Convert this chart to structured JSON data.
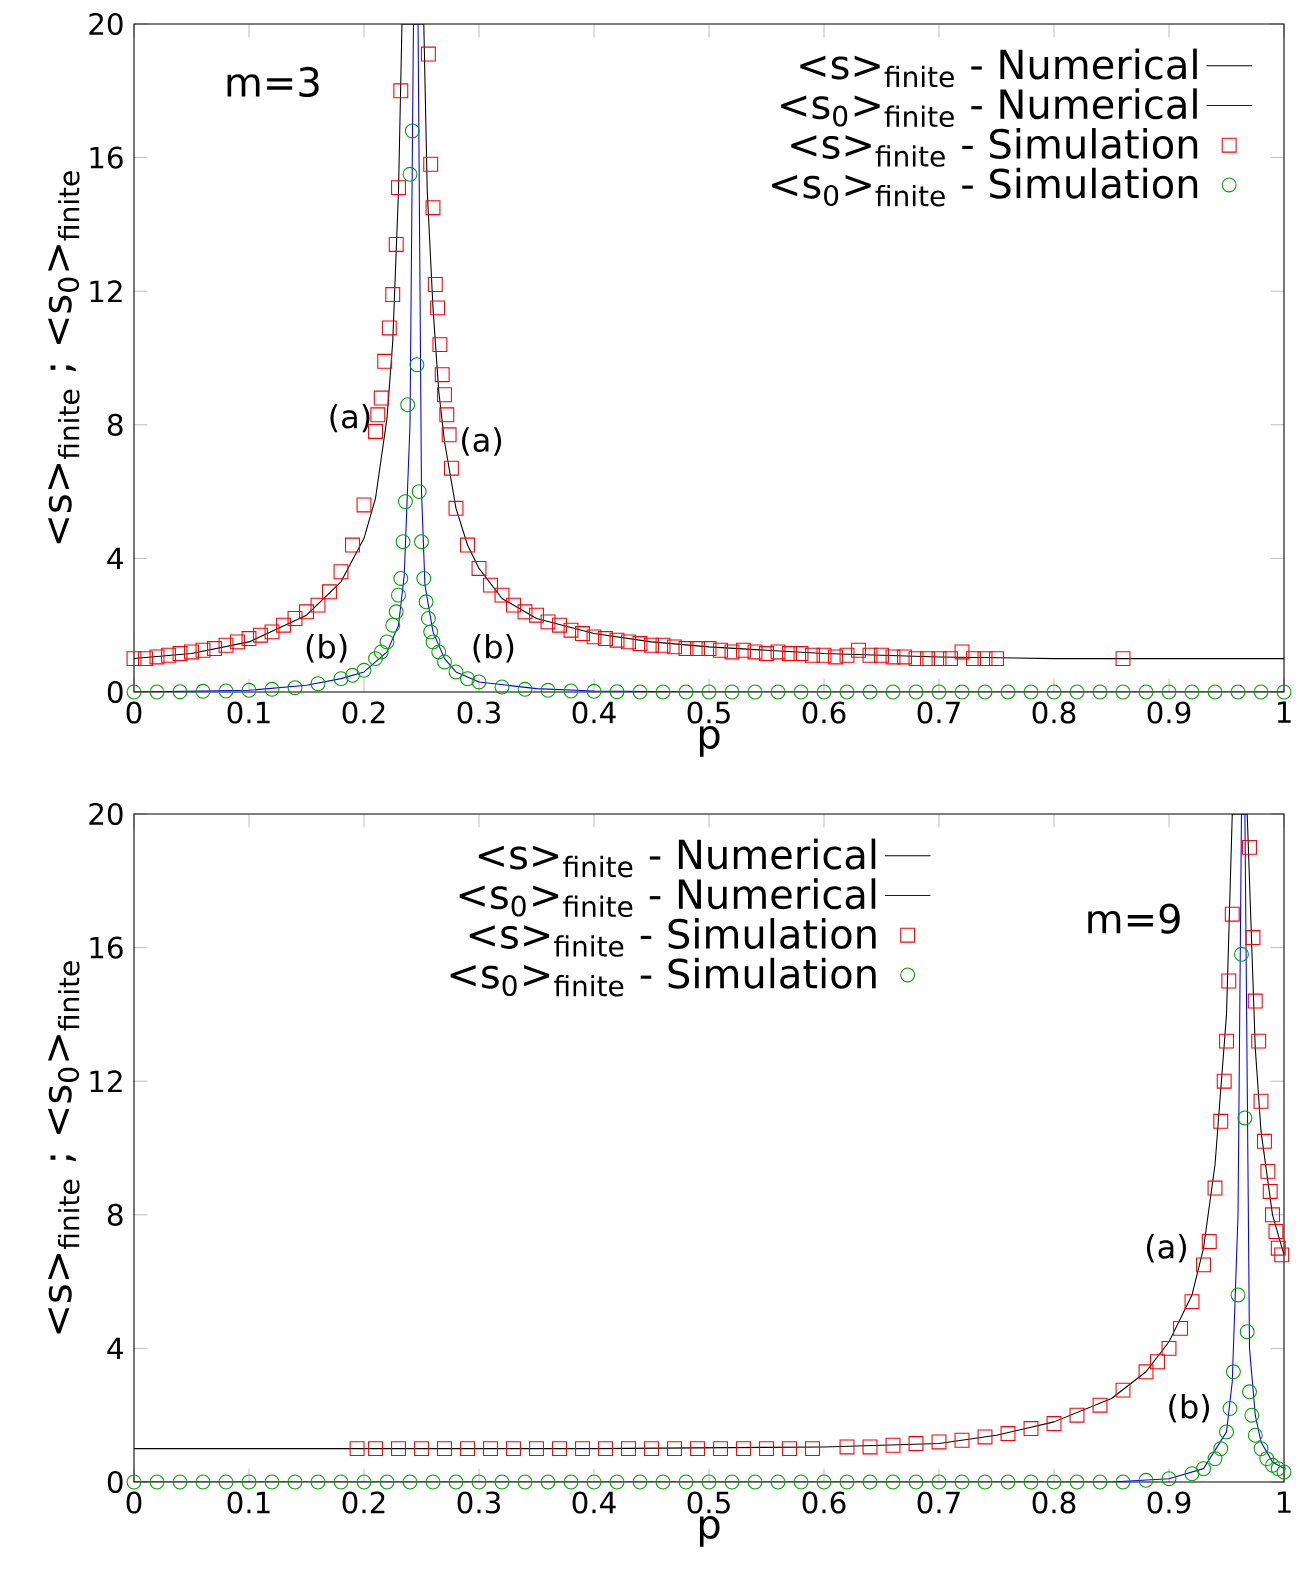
{
  "chart_data": [
    {
      "type": "line",
      "xlabel": "p",
      "ylabel": "<s>$_{finite}$ ; <s$_{0}$>$_{finite}$",
      "xlim": [
        0,
        1
      ],
      "ylim": [
        0,
        20
      ],
      "xticks": [
        0,
        0.1,
        0.2,
        0.3,
        0.4,
        0.5,
        0.6,
        0.7,
        0.8,
        0.9,
        1
      ],
      "yticks": [
        0,
        4,
        8,
        12,
        16,
        20
      ],
      "legend": "top right",
      "annotations": [
        "m=3",
        {
          "text": "(a)",
          "x": 0.22,
          "y": 8.2
        },
        {
          "text": "(a)",
          "x": 0.27,
          "y": 7.5
        },
        {
          "text": "(b)",
          "x": 0.2,
          "y": 0.6
        },
        {
          "text": "(b)",
          "x": 0.28,
          "y": 0.6
        }
      ],
      "series": [
        {
          "name": "<s>$_{finite}$ - Numerical",
          "color": "#000000",
          "x": [
            0,
            0.05,
            0.1,
            0.15,
            0.18,
            0.2,
            0.21,
            0.22,
            0.225,
            0.23,
            0.233,
            0.252,
            0.255,
            0.26,
            0.265,
            0.27,
            0.28,
            0.29,
            0.3,
            0.32,
            0.35,
            0.4,
            0.45,
            0.5,
            0.6,
            0.7,
            0.8,
            1
          ],
          "values": [
            1.0,
            1.15,
            1.5,
            2.3,
            3.3,
            4.6,
            5.8,
            8.2,
            10.5,
            15,
            20,
            20,
            15,
            11.5,
            9,
            7.5,
            5.5,
            4.4,
            3.7,
            2.8,
            2.2,
            1.75,
            1.5,
            1.35,
            1.15,
            1.05,
            1.0,
            1.0
          ]
        },
        {
          "name": "<s$_{0}$>$_{finite}$ - Numerical",
          "color": "#0000ff",
          "x": [
            0,
            0.1,
            0.15,
            0.18,
            0.2,
            0.22,
            0.23,
            0.235,
            0.24,
            0.243,
            0.247,
            0.25,
            0.253,
            0.26,
            0.27,
            0.28,
            0.3,
            0.35,
            0.4,
            0.5,
            1
          ],
          "values": [
            0,
            0.05,
            0.2,
            0.4,
            0.6,
            1.2,
            2.0,
            3.5,
            8,
            20,
            20,
            6,
            3.2,
            1.8,
            1.0,
            0.6,
            0.3,
            0.1,
            0.03,
            0,
            0
          ]
        },
        {
          "name": "<s>$_{finite}$ - Simulation",
          "type": "scatter",
          "marker": "square",
          "color": "#ff0000",
          "x": [
            0,
            0.01,
            0.02,
            0.03,
            0.04,
            0.05,
            0.06,
            0.07,
            0.08,
            0.09,
            0.1,
            0.11,
            0.12,
            0.13,
            0.14,
            0.15,
            0.16,
            0.17,
            0.18,
            0.19,
            0.2,
            0.21,
            0.212,
            0.215,
            0.218,
            0.222,
            0.225,
            0.228,
            0.23,
            0.232,
            0.256,
            0.258,
            0.26,
            0.262,
            0.264,
            0.266,
            0.268,
            0.27,
            0.272,
            0.274,
            0.276,
            0.28,
            0.29,
            0.3,
            0.31,
            0.32,
            0.33,
            0.34,
            0.35,
            0.36,
            0.37,
            0.38,
            0.39,
            0.4,
            0.41,
            0.42,
            0.43,
            0.44,
            0.45,
            0.46,
            0.47,
            0.48,
            0.49,
            0.5,
            0.51,
            0.52,
            0.53,
            0.54,
            0.55,
            0.56,
            0.57,
            0.58,
            0.59,
            0.6,
            0.61,
            0.62,
            0.63,
            0.64,
            0.65,
            0.66,
            0.67,
            0.68,
            0.69,
            0.7,
            0.71,
            0.72,
            0.73,
            0.74,
            0.75,
            0.86
          ],
          "values": [
            1.0,
            1.0,
            1.05,
            1.1,
            1.15,
            1.2,
            1.25,
            1.3,
            1.4,
            1.5,
            1.6,
            1.7,
            1.8,
            2.0,
            2.2,
            2.4,
            2.6,
            3.0,
            3.6,
            4.4,
            5.6,
            7.8,
            8.3,
            8.8,
            9.9,
            10.9,
            11.9,
            13.4,
            15.1,
            18.0,
            19.1,
            15.8,
            14.5,
            12.2,
            11.5,
            10.4,
            9.5,
            8.9,
            8.3,
            7.7,
            6.7,
            5.5,
            4.4,
            3.7,
            3.2,
            2.9,
            2.6,
            2.4,
            2.3,
            2.1,
            2.0,
            1.85,
            1.75,
            1.65,
            1.6,
            1.55,
            1.5,
            1.45,
            1.4,
            1.4,
            1.35,
            1.3,
            1.3,
            1.3,
            1.25,
            1.2,
            1.25,
            1.2,
            1.15,
            1.2,
            1.15,
            1.15,
            1.1,
            1.1,
            1.05,
            1.1,
            1.25,
            1.1,
            1.1,
            1.05,
            1.05,
            1.0,
            1.0,
            1.0,
            1.0,
            1.2,
            1.0,
            1.0,
            1.0,
            1.0
          ]
        },
        {
          "name": "<s$_{0}$>$_{finite}$ - Simulation",
          "type": "scatter",
          "marker": "circle",
          "color": "#00a000",
          "x": [
            0,
            0.02,
            0.04,
            0.06,
            0.08,
            0.1,
            0.12,
            0.14,
            0.16,
            0.18,
            0.19,
            0.2,
            0.21,
            0.215,
            0.22,
            0.225,
            0.228,
            0.23,
            0.232,
            0.234,
            0.236,
            0.238,
            0.24,
            0.242,
            0.246,
            0.248,
            0.25,
            0.252,
            0.254,
            0.256,
            0.258,
            0.26,
            0.265,
            0.27,
            0.28,
            0.29,
            0.3,
            0.32,
            0.34,
            0.36,
            0.38,
            0.4,
            0.42,
            0.44,
            0.46,
            0.48,
            0.5,
            0.52,
            0.54,
            0.56,
            0.58,
            0.6,
            0.62,
            0.64,
            0.66,
            0.68,
            0.7,
            0.72,
            0.74,
            0.76,
            0.78,
            0.8,
            0.82,
            0.84,
            0.86,
            0.88,
            0.9,
            0.92,
            0.94,
            0.96,
            0.98,
            1.0
          ],
          "values": [
            0,
            0,
            0.01,
            0.02,
            0.03,
            0.05,
            0.08,
            0.13,
            0.25,
            0.4,
            0.5,
            0.65,
            1.0,
            1.2,
            1.5,
            2.0,
            2.4,
            2.9,
            3.4,
            4.5,
            5.7,
            8.6,
            15.5,
            16.8,
            9.8,
            6.0,
            4.5,
            3.4,
            2.7,
            2.2,
            1.8,
            1.5,
            1.2,
            0.9,
            0.6,
            0.4,
            0.3,
            0.15,
            0.08,
            0.05,
            0.03,
            0.02,
            0.01,
            0,
            0,
            0,
            0,
            0,
            0,
            0,
            0,
            0,
            0,
            0,
            0,
            0,
            0,
            0,
            0,
            0,
            0,
            0,
            0,
            0,
            0,
            0,
            0,
            0,
            0,
            0,
            0,
            0
          ]
        }
      ]
    },
    {
      "type": "line",
      "xlabel": "p",
      "ylabel": "<s>$_{finite}$ ; <s$_{0}$>$_{finite}$",
      "xlim": [
        0,
        1
      ],
      "ylim": [
        0,
        20
      ],
      "xticks": [
        0,
        0.1,
        0.2,
        0.3,
        0.4,
        0.5,
        0.6,
        0.7,
        0.8,
        0.9,
        1
      ],
      "yticks": [
        0,
        4,
        8,
        12,
        16,
        20
      ],
      "legend": "top",
      "annotations": [
        "m=9",
        {
          "text": "(a)",
          "x": 0.93,
          "y": 7.0
        },
        {
          "text": "(b)",
          "x": 0.95,
          "y": 1.5
        }
      ],
      "series": [
        {
          "name": "<s>$_{finite}$ - Numerical",
          "color": "#000000",
          "x": [
            0,
            0.2,
            0.4,
            0.6,
            0.7,
            0.75,
            0.8,
            0.85,
            0.88,
            0.9,
            0.92,
            0.93,
            0.94,
            0.95,
            0.955,
            0.968,
            0.975,
            0.98,
            0.99,
            1
          ],
          "values": [
            1.0,
            1.0,
            1.0,
            1.05,
            1.15,
            1.4,
            1.8,
            2.5,
            3.3,
            4.2,
            5.6,
            7.0,
            9.5,
            14,
            20,
            20,
            13,
            10.5,
            8,
            6.8
          ]
        },
        {
          "name": "<s$_{0}$>$_{finite}$ - Numerical",
          "color": "#0000ff",
          "x": [
            0,
            0.85,
            0.9,
            0.93,
            0.95,
            0.955,
            0.96,
            0.963,
            0.966,
            0.97,
            0.975,
            0.98,
            0.99,
            1
          ],
          "values": [
            0,
            0,
            0.1,
            0.4,
            1.5,
            3,
            8,
            20,
            20,
            4,
            2,
            1.2,
            0.6,
            0.4
          ]
        },
        {
          "name": "<s>$_{finite}$ - Simulation",
          "type": "scatter",
          "marker": "square",
          "color": "#ff0000",
          "x": [
            0.194,
            0.21,
            0.23,
            0.25,
            0.27,
            0.29,
            0.31,
            0.33,
            0.35,
            0.37,
            0.39,
            0.41,
            0.43,
            0.45,
            0.47,
            0.49,
            0.51,
            0.53,
            0.55,
            0.57,
            0.59,
            0.62,
            0.64,
            0.66,
            0.68,
            0.7,
            0.72,
            0.74,
            0.76,
            0.78,
            0.8,
            0.82,
            0.84,
            0.86,
            0.88,
            0.89,
            0.9,
            0.91,
            0.92,
            0.93,
            0.935,
            0.94,
            0.945,
            0.948,
            0.95,
            0.952,
            0.955,
            0.97,
            0.973,
            0.975,
            0.978,
            0.98,
            0.983,
            0.986,
            0.988,
            0.99,
            0.993,
            0.995,
            0.998
          ],
          "values": [
            1.0,
            1.0,
            1.0,
            1.0,
            1.0,
            1.0,
            1.0,
            1.0,
            1.0,
            1.0,
            1.0,
            1.0,
            1.0,
            1.0,
            1.0,
            1.0,
            1.0,
            1.0,
            1.0,
            1.0,
            1.0,
            1.05,
            1.05,
            1.1,
            1.15,
            1.2,
            1.25,
            1.35,
            1.45,
            1.6,
            1.75,
            2.0,
            2.3,
            2.75,
            3.3,
            3.6,
            4.0,
            4.6,
            5.4,
            6.5,
            7.2,
            8.8,
            10.8,
            12,
            13.2,
            15,
            17,
            19,
            16.3,
            14.4,
            13.2,
            11.4,
            10.2,
            9.3,
            8.7,
            8.0,
            7.5,
            7.0,
            6.8
          ]
        },
        {
          "name": "<s$_{0}$>$_{finite}$ - Simulation",
          "type": "scatter",
          "marker": "circle",
          "color": "#00a000",
          "x": [
            0,
            0.02,
            0.04,
            0.06,
            0.08,
            0.1,
            0.12,
            0.14,
            0.16,
            0.18,
            0.2,
            0.22,
            0.24,
            0.26,
            0.28,
            0.3,
            0.32,
            0.34,
            0.36,
            0.38,
            0.4,
            0.42,
            0.44,
            0.46,
            0.48,
            0.5,
            0.52,
            0.54,
            0.56,
            0.58,
            0.6,
            0.62,
            0.64,
            0.66,
            0.68,
            0.7,
            0.72,
            0.74,
            0.76,
            0.78,
            0.8,
            0.82,
            0.84,
            0.86,
            0.88,
            0.9,
            0.92,
            0.93,
            0.94,
            0.945,
            0.95,
            0.953,
            0.956,
            0.96,
            0.963,
            0.966,
            0.968,
            0.97,
            0.972,
            0.975,
            0.98,
            0.985,
            0.99,
            0.995,
            1.0
          ],
          "values": [
            0,
            0,
            0,
            0,
            0,
            0,
            0,
            0,
            0,
            0,
            0,
            0,
            0,
            0,
            0,
            0,
            0,
            0,
            0,
            0,
            0,
            0,
            0,
            0,
            0,
            0,
            0,
            0,
            0,
            0,
            0,
            0,
            0,
            0,
            0,
            0,
            0,
            0,
            0,
            0,
            0,
            0,
            0,
            0,
            0.05,
            0.1,
            0.25,
            0.4,
            0.7,
            1.0,
            1.5,
            2.2,
            3.3,
            5.6,
            15.8,
            10.9,
            4.5,
            2.7,
            2.0,
            1.4,
            1.0,
            0.7,
            0.5,
            0.4,
            0.3
          ]
        }
      ]
    }
  ]
}
